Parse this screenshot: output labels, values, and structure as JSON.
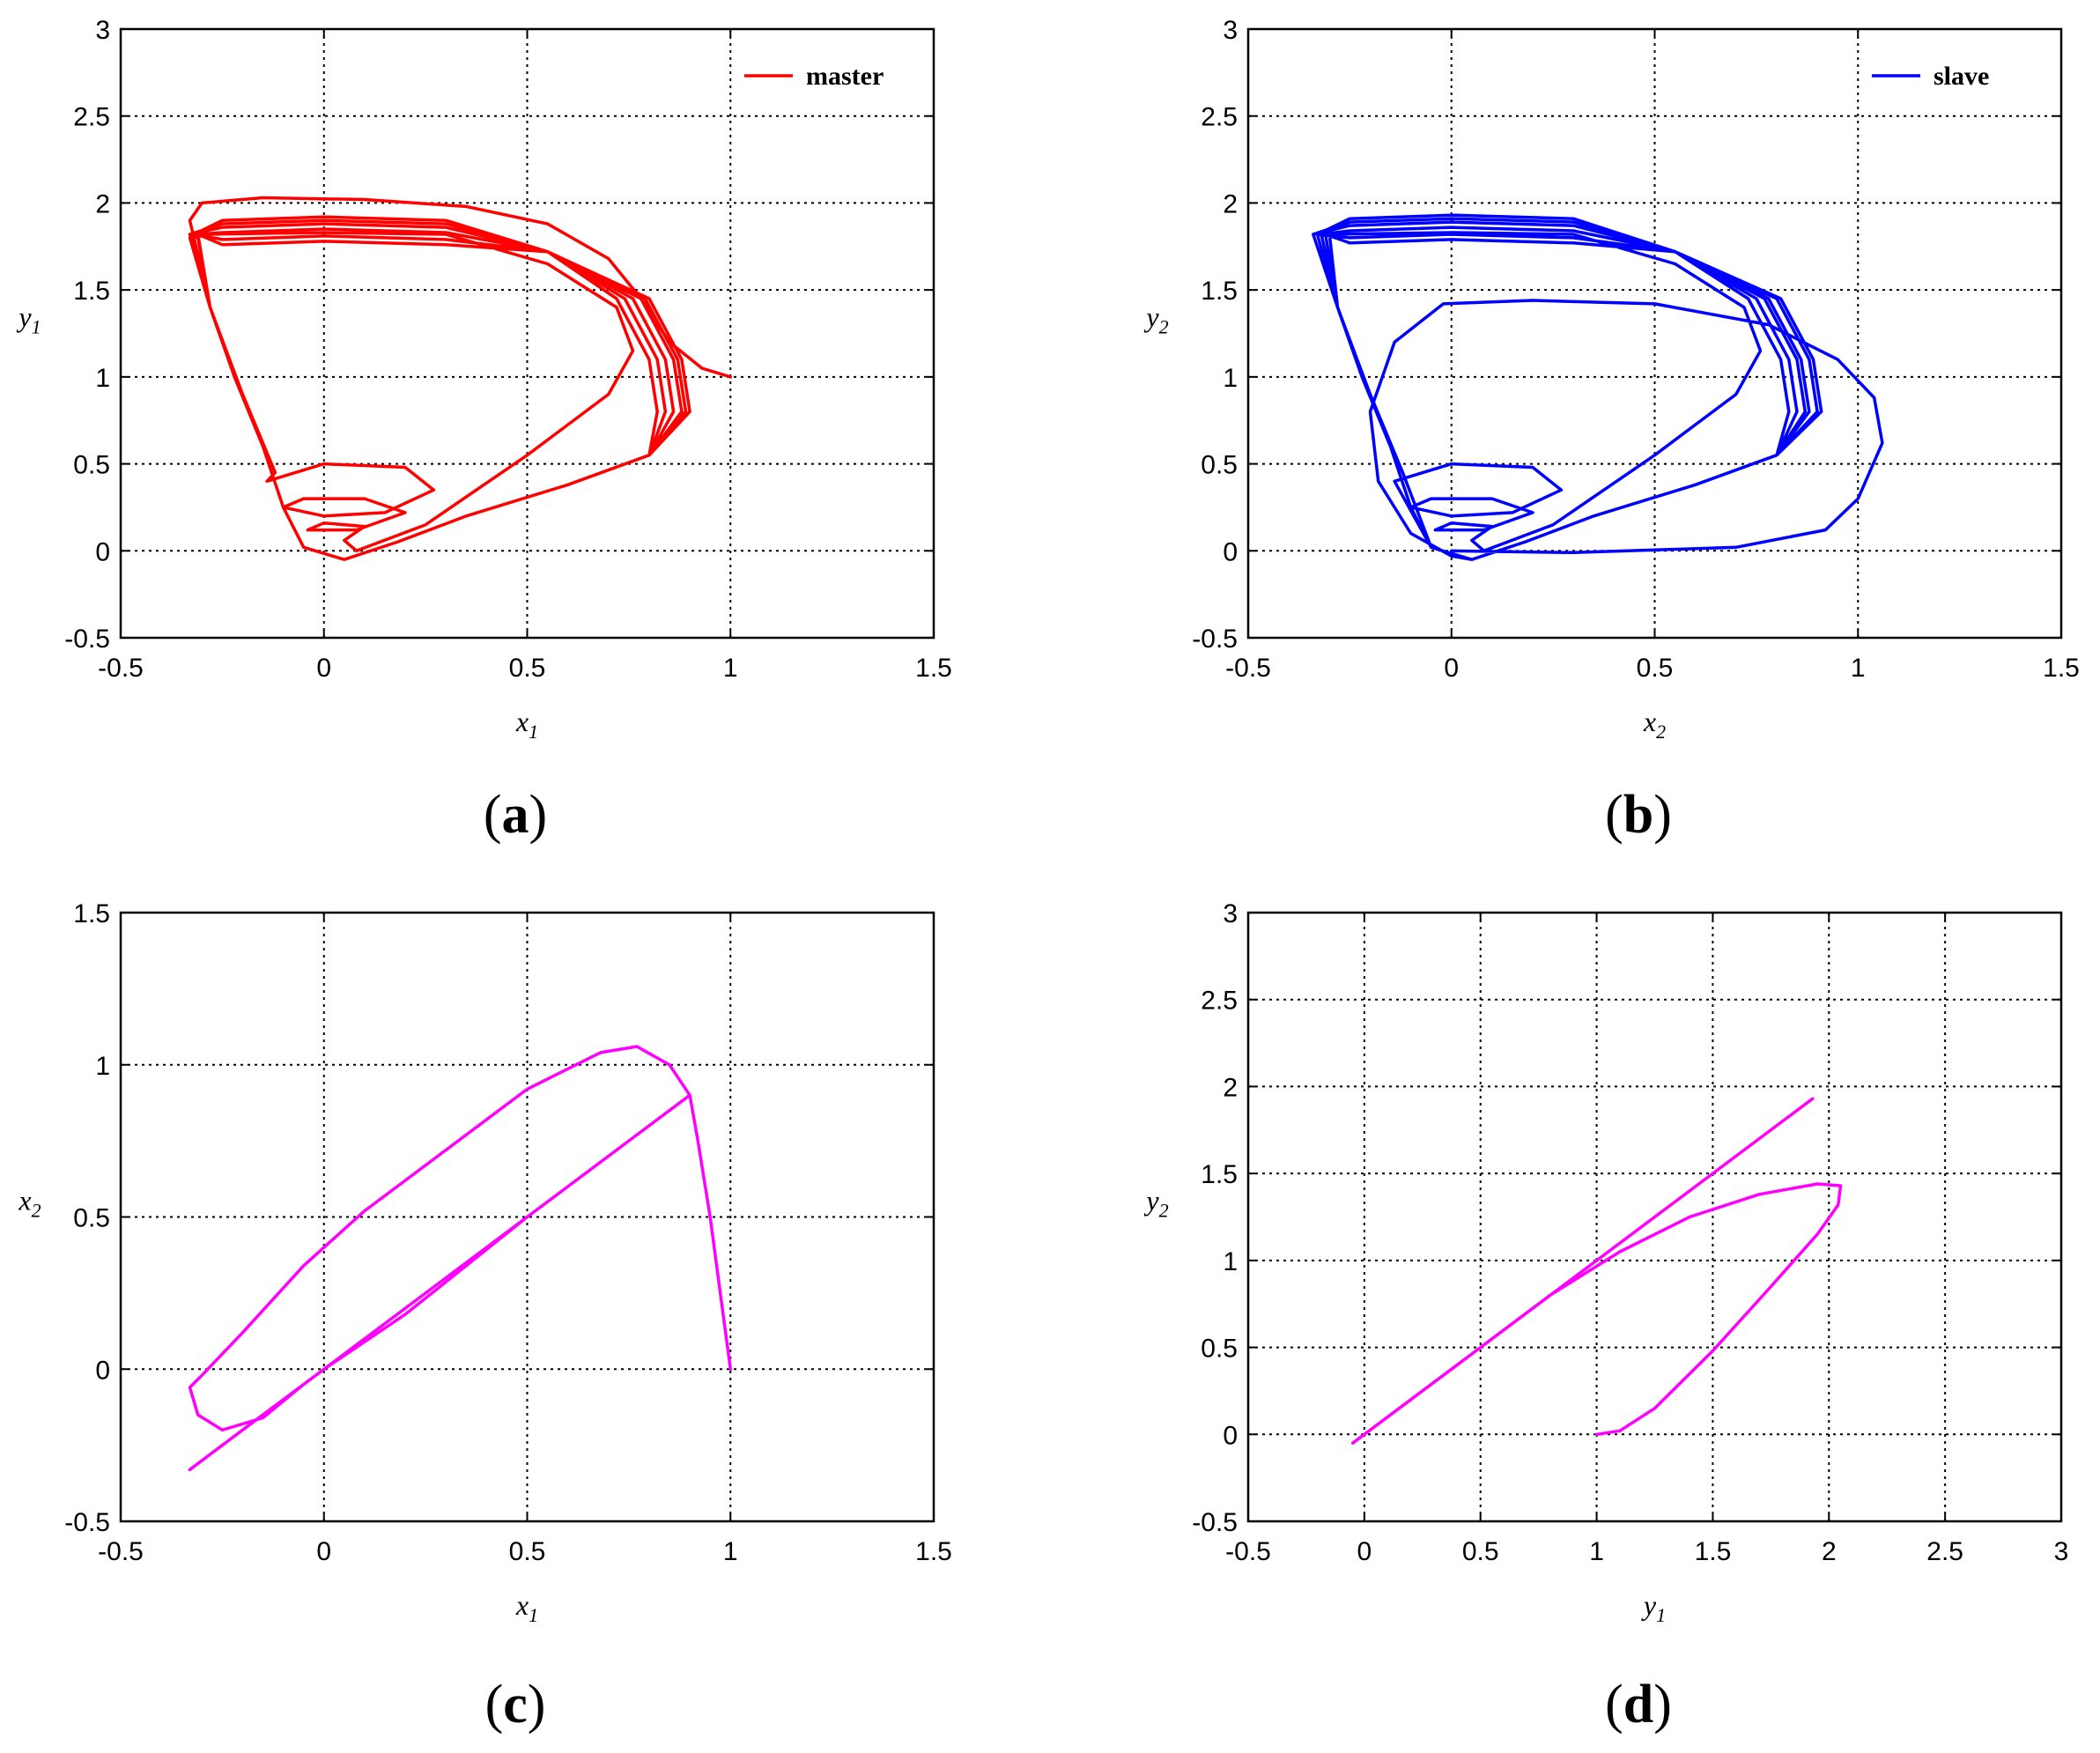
{
  "chart_data": [
    {
      "type": "line",
      "panel": "a",
      "xlabel": {
        "base": "x",
        "sub": "1"
      },
      "ylabel": {
        "base": "y",
        "sub": "1"
      },
      "xlim": [
        -0.5,
        1.5
      ],
      "ylim": [
        -0.5,
        3
      ],
      "xticks": [
        "-0.5",
        "0",
        "0.5",
        "1",
        "1.5"
      ],
      "yticks": [
        "-0.5",
        "0",
        "0.5",
        "1",
        "1.5",
        "2",
        "2.5",
        "3"
      ],
      "grid": true,
      "legend_position": "top-right",
      "series": [
        {
          "name": "master",
          "color": "#ff0000",
          "kind": "attractor-a",
          "start": [
            1.0,
            1.0
          ]
        }
      ]
    },
    {
      "type": "line",
      "panel": "b",
      "xlabel": {
        "base": "x",
        "sub": "2"
      },
      "ylabel": {
        "base": "y",
        "sub": "2"
      },
      "xlim": [
        -0.5,
        1.5
      ],
      "ylim": [
        -0.5,
        3
      ],
      "xticks": [
        "-0.5",
        "0",
        "0.5",
        "1",
        "1.5"
      ],
      "yticks": [
        "-0.5",
        "0",
        "0.5",
        "1",
        "1.5",
        "2",
        "2.5",
        "3"
      ],
      "grid": true,
      "legend_position": "top-right",
      "series": [
        {
          "name": "slave",
          "color": "#0000ff",
          "kind": "attractor-b",
          "start": [
            0.0,
            0.0
          ]
        }
      ]
    },
    {
      "type": "line",
      "panel": "c",
      "xlabel": {
        "base": "x",
        "sub": "1"
      },
      "ylabel": {
        "base": "x",
        "sub": "2"
      },
      "xlim": [
        -0.5,
        1.5
      ],
      "ylim": [
        -0.5,
        1.5
      ],
      "xticks": [
        "-0.5",
        "0",
        "0.5",
        "1",
        "1.5"
      ],
      "yticks": [
        "-0.5",
        "0",
        "0.5",
        "1",
        "1.5"
      ],
      "grid": true,
      "series": [
        {
          "color": "#ff00ff",
          "points": [
            [
              1.0,
              0.0
            ],
            [
              0.98,
              0.2
            ],
            [
              0.95,
              0.5
            ],
            [
              0.92,
              0.75
            ],
            [
              0.9,
              0.9
            ],
            [
              0.85,
              1.0
            ],
            [
              0.77,
              1.06
            ],
            [
              0.68,
              1.04
            ],
            [
              0.5,
              0.92
            ],
            [
              0.3,
              0.72
            ],
            [
              0.1,
              0.52
            ],
            [
              -0.05,
              0.34
            ],
            [
              -0.2,
              0.12
            ],
            [
              -0.3,
              -0.02
            ],
            [
              -0.33,
              -0.06
            ],
            [
              -0.31,
              -0.15
            ],
            [
              -0.25,
              -0.2
            ],
            [
              -0.15,
              -0.16
            ],
            [
              -0.05,
              -0.05
            ],
            [
              0.0,
              0.0
            ],
            [
              0.2,
              0.18
            ],
            [
              0.5,
              0.5
            ],
            [
              0.75,
              0.75
            ],
            [
              0.9,
              0.9
            ],
            [
              0.7,
              0.7
            ],
            [
              0.3,
              0.3
            ],
            [
              0.0,
              0.0
            ],
            [
              -0.2,
              -0.2
            ],
            [
              -0.33,
              -0.33
            ]
          ]
        }
      ]
    },
    {
      "type": "line",
      "panel": "d",
      "xlabel": {
        "base": "y",
        "sub": "1"
      },
      "ylabel": {
        "base": "y",
        "sub": "2"
      },
      "xlim": [
        -0.5,
        3
      ],
      "ylim": [
        -0.5,
        3
      ],
      "xticks": [
        "-0.5",
        "0",
        "0.5",
        "1",
        "1.5",
        "2",
        "2.5",
        "3"
      ],
      "yticks": [
        "-0.5",
        "0",
        "0.5",
        "1",
        "1.5",
        "2",
        "2.5",
        "3"
      ],
      "grid": true,
      "series": [
        {
          "color": "#ff00ff",
          "points": [
            [
              1.0,
              0.0
            ],
            [
              1.1,
              0.02
            ],
            [
              1.25,
              0.15
            ],
            [
              1.5,
              0.48
            ],
            [
              1.75,
              0.85
            ],
            [
              1.95,
              1.15
            ],
            [
              2.04,
              1.32
            ],
            [
              2.05,
              1.43
            ],
            [
              1.95,
              1.44
            ],
            [
              1.7,
              1.38
            ],
            [
              1.4,
              1.25
            ],
            [
              1.1,
              1.05
            ],
            [
              0.8,
              0.8
            ],
            [
              0.5,
              0.5
            ],
            [
              0.2,
              0.2
            ],
            [
              -0.05,
              -0.05
            ],
            [
              0.3,
              0.3
            ],
            [
              0.7,
              0.7
            ],
            [
              1.0,
              1.0
            ],
            [
              1.3,
              1.3
            ],
            [
              1.6,
              1.6
            ],
            [
              1.93,
              1.93
            ]
          ]
        }
      ]
    }
  ],
  "panel_labels": [
    {
      "open": "(",
      "letter": "a",
      "close": ")"
    },
    {
      "open": "(",
      "letter": "b",
      "close": ")"
    },
    {
      "open": "(",
      "letter": "c",
      "close": ")"
    },
    {
      "open": "(",
      "letter": "d",
      "close": ")"
    }
  ]
}
